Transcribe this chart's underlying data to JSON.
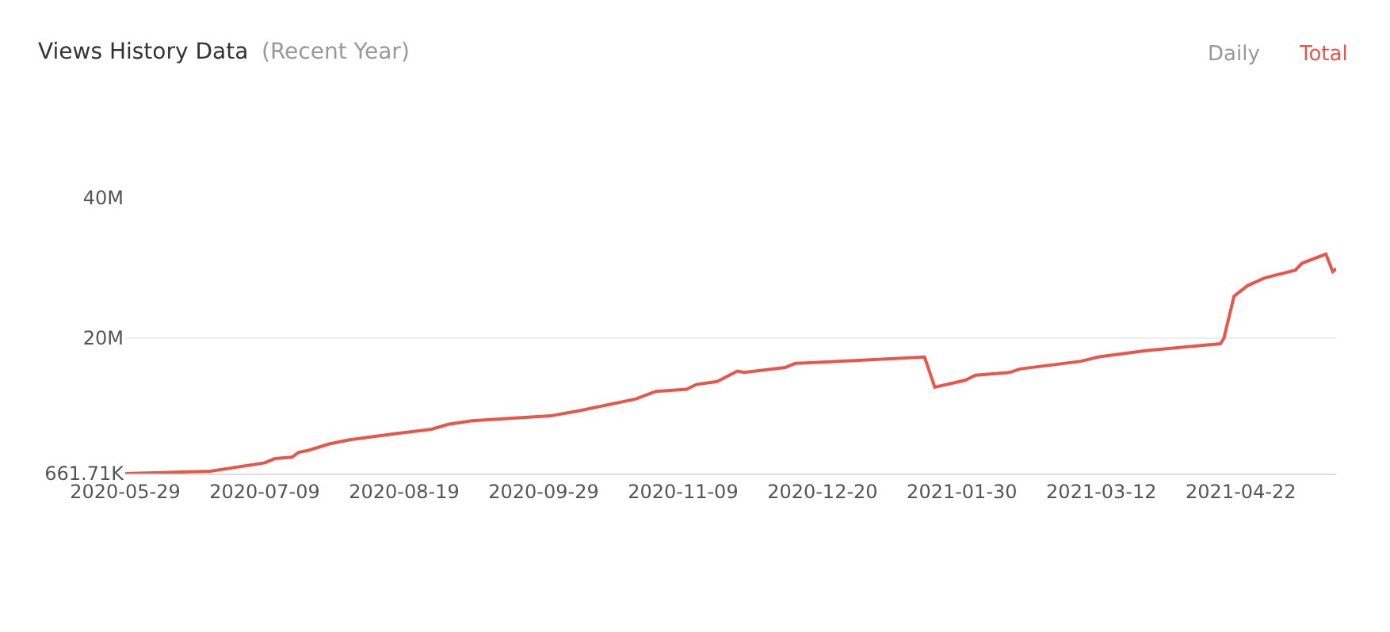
{
  "chart_data": {
    "type": "line",
    "title": "Views History Data",
    "subtitle": "(Recent Year)",
    "annotations": [
      "Daily",
      "Total"
    ],
    "x": [
      "2020-05-29",
      "2020-06-23",
      "2020-07-09",
      "2020-07-12",
      "2020-07-17",
      "2020-07-19",
      "2020-07-22",
      "2020-07-28",
      "2020-08-03",
      "2020-08-17",
      "2020-08-27",
      "2020-09-01",
      "2020-09-08",
      "2020-10-01",
      "2020-10-09",
      "2020-10-18",
      "2020-10-26",
      "2020-11-01",
      "2020-11-10",
      "2020-11-13",
      "2020-11-19",
      "2020-11-25",
      "2020-11-27",
      "2020-12-09",
      "2020-12-12",
      "2020-12-26",
      "2021-01-19",
      "2021-01-22",
      "2021-01-31",
      "2021-02-03",
      "2021-02-13",
      "2021-02-16",
      "2021-03-06",
      "2021-03-11",
      "2021-03-25",
      "2021-04-16",
      "2021-04-17",
      "2021-04-20",
      "2021-04-24",
      "2021-04-29",
      "2021-05-08",
      "2021-05-10",
      "2021-05-17",
      "2021-05-19",
      "2021-05-20"
    ],
    "series": [
      {
        "color": "#e8554a",
        "values": [
          661710,
          1000000,
          2200000,
          2800000,
          3000000,
          3700000,
          4000000,
          4900000,
          5500000,
          6400000,
          7000000,
          7700000,
          8200000,
          8900000,
          9600000,
          10500000,
          11300000,
          12400000,
          12700000,
          13400000,
          13800000,
          15300000,
          15100000,
          15800000,
          16400000,
          16700000,
          17300000,
          13000000,
          14000000,
          14700000,
          15100000,
          15600000,
          16700000,
          17300000,
          18200000,
          19200000,
          20000000,
          26000000,
          27500000,
          28600000,
          29700000,
          30700000,
          32000000,
          29500000,
          29900000
        ]
      }
    ],
    "xlim": [
      "2020-05-29",
      "2021-05-20"
    ],
    "xticks": [
      "2020-05-29",
      "2020-07-09",
      "2020-08-19",
      "2020-09-29",
      "2020-11-09",
      "2020-12-20",
      "2021-01-30",
      "2021-03-12",
      "2021-04-22"
    ],
    "ylim": [
      661710,
      40000000
    ],
    "yticks": [
      {
        "value": 661710,
        "label": "661.71K"
      },
      {
        "value": 20000000,
        "label": "20M"
      },
      {
        "value": 40000000,
        "label": "40M"
      }
    ],
    "grid": "y",
    "marker": "none",
    "line_style": "solid"
  }
}
